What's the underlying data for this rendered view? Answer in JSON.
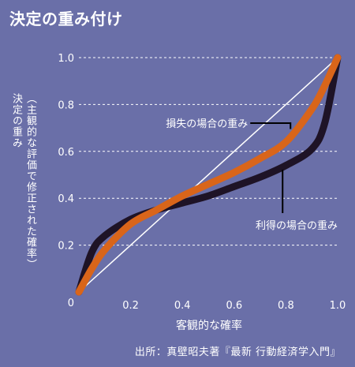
{
  "title": "決定の重み付け",
  "ylabel_line1": "決定の重み",
  "ylabel_line2": "（主観的な評価で修正された確率）",
  "xlabel": "客観的な確率",
  "source": "出所：真壁昭夫著『最新 行動経済学入門』",
  "colors": {
    "background": "#6a6fa8",
    "loss_curve": "#d9651a",
    "gain_curve": "#1e1326",
    "diagonal": "#ffffff",
    "grid": "#ffffff"
  },
  "chart_data": {
    "type": "line",
    "title": "決定の重み付け",
    "xlabel": "客観的な確率",
    "ylabel": "決定の重み（主観的な評価で修正された確率）",
    "xlim": [
      0,
      1.0
    ],
    "ylim": [
      0,
      1.0
    ],
    "x_ticks": [
      "0.2",
      "0.4",
      "0.6",
      "0.8",
      "1.0"
    ],
    "y_ticks": [
      "0.2",
      "0.4",
      "0.6",
      "0.8",
      "1.0"
    ],
    "origin_label": "0",
    "grid": "horizontal dashed",
    "series": [
      {
        "name": "損失の場合の重み",
        "x": [
          0,
          0.05,
          0.1,
          0.2,
          0.3,
          0.4,
          0.5,
          0.6,
          0.7,
          0.8,
          0.9,
          0.95,
          1.0
        ],
        "y": [
          0,
          0.1,
          0.18,
          0.29,
          0.35,
          0.41,
          0.46,
          0.51,
          0.57,
          0.64,
          0.78,
          0.88,
          1.0
        ]
      },
      {
        "name": "利得の場合の重み",
        "x": [
          0,
          0.05,
          0.1,
          0.2,
          0.3,
          0.4,
          0.5,
          0.6,
          0.7,
          0.8,
          0.9,
          0.95,
          1.0
        ],
        "y": [
          0,
          0.17,
          0.24,
          0.31,
          0.35,
          0.38,
          0.41,
          0.45,
          0.49,
          0.54,
          0.61,
          0.72,
          1.0
        ]
      },
      {
        "name": "",
        "x": [
          0,
          1.0
        ],
        "y": [
          0,
          1.0
        ]
      }
    ],
    "annotations": [
      {
        "text": "損失の場合の重み",
        "series": 0,
        "x": 0.83
      },
      {
        "text": "利得の場合の重み",
        "series": 1,
        "x": 0.83
      }
    ]
  }
}
